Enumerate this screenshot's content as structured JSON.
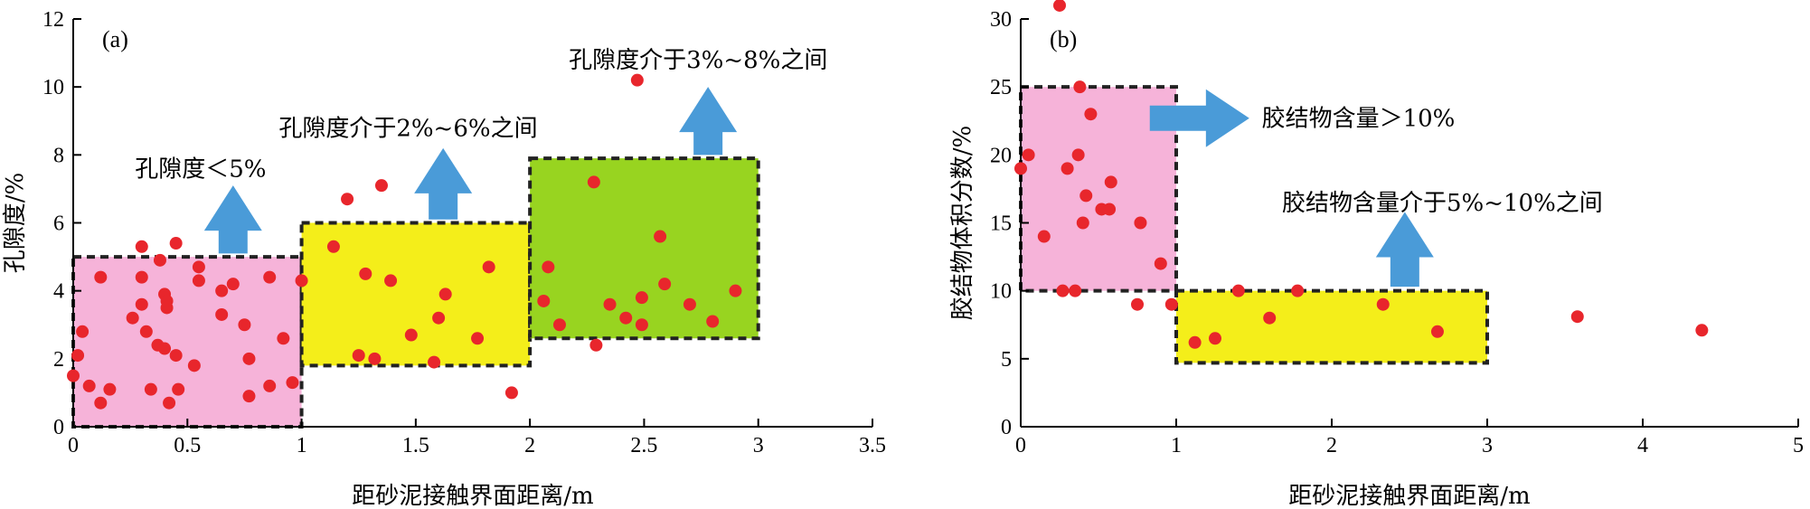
{
  "chart_data": [
    {
      "type": "scatter",
      "panel_label": "(a)",
      "xlabel": "距砂泥接触界面距离/m",
      "ylabel": "孔隙度/%",
      "xlim": [
        0,
        3.5
      ],
      "ylim": [
        0,
        12
      ],
      "xticks": [
        "0",
        "0.5",
        "1",
        "1.5",
        "2",
        "2.5",
        "3",
        "3.5"
      ],
      "yticks": [
        "0",
        "2",
        "4",
        "6",
        "8",
        "10",
        "12"
      ],
      "zones": [
        {
          "x0": 0,
          "x1": 1,
          "y0": 0,
          "y1": 5,
          "color": "#f6b3d9"
        },
        {
          "x0": 1,
          "x1": 2,
          "y0": 1.8,
          "y1": 6,
          "color": "#f4ee1a"
        },
        {
          "x0": 2,
          "x1": 3,
          "y0": 2.6,
          "y1": 7.9,
          "color": "#98d420"
        }
      ],
      "annotations": [
        {
          "text": "孔隙度＜5%",
          "x": 0.27,
          "y": 7.6,
          "arrow_x": 0.7,
          "arrow_y0": 5.1,
          "arrow_y1": 7.1
        },
        {
          "text": "孔隙度介于2%~6%之间",
          "x": 0.9,
          "y": 8.8,
          "arrow_x": 1.62,
          "arrow_y0": 6.1,
          "arrow_y1": 8.2
        },
        {
          "text": "孔隙度介于3%~8%之间",
          "x": 2.17,
          "y": 10.8,
          "arrow_x": 2.78,
          "arrow_y0": 8.0,
          "arrow_y1": 10.0
        }
      ],
      "points": [
        [
          0.0,
          1.5
        ],
        [
          0.02,
          2.1
        ],
        [
          0.04,
          2.8
        ],
        [
          0.07,
          1.2
        ],
        [
          0.12,
          4.4
        ],
        [
          0.12,
          0.7
        ],
        [
          0.16,
          1.1
        ],
        [
          0.26,
          3.2
        ],
        [
          0.3,
          5.3
        ],
        [
          0.3,
          4.4
        ],
        [
          0.3,
          3.6
        ],
        [
          0.32,
          2.8
        ],
        [
          0.34,
          1.1
        ],
        [
          0.37,
          2.4
        ],
        [
          0.38,
          4.9
        ],
        [
          0.4,
          3.9
        ],
        [
          0.4,
          2.3
        ],
        [
          0.41,
          3.5
        ],
        [
          0.41,
          3.7
        ],
        [
          0.42,
          0.7
        ],
        [
          0.45,
          2.1
        ],
        [
          0.45,
          5.4
        ],
        [
          0.46,
          1.1
        ],
        [
          0.53,
          1.8
        ],
        [
          0.55,
          4.7
        ],
        [
          0.55,
          4.3
        ],
        [
          0.65,
          4.0
        ],
        [
          0.65,
          3.3
        ],
        [
          0.7,
          4.2
        ],
        [
          0.75,
          3.0
        ],
        [
          0.77,
          2.0
        ],
        [
          0.77,
          0.9
        ],
        [
          0.86,
          4.4
        ],
        [
          0.86,
          1.2
        ],
        [
          0.92,
          2.6
        ],
        [
          0.96,
          1.3
        ],
        [
          1.0,
          4.3
        ],
        [
          1.14,
          5.3
        ],
        [
          1.2,
          6.7
        ],
        [
          1.25,
          2.1
        ],
        [
          1.28,
          4.5
        ],
        [
          1.32,
          2.0
        ],
        [
          1.35,
          7.1
        ],
        [
          1.39,
          4.3
        ],
        [
          1.48,
          2.7
        ],
        [
          1.58,
          1.9
        ],
        [
          1.6,
          3.2
        ],
        [
          1.63,
          3.9
        ],
        [
          1.77,
          2.6
        ],
        [
          1.82,
          4.7
        ],
        [
          1.92,
          1.0
        ],
        [
          2.06,
          3.7
        ],
        [
          2.08,
          4.7
        ],
        [
          2.13,
          3.0
        ],
        [
          2.28,
          7.2
        ],
        [
          2.29,
          2.4
        ],
        [
          2.35,
          3.6
        ],
        [
          2.42,
          3.2
        ],
        [
          2.47,
          10.2
        ],
        [
          2.49,
          3.0
        ],
        [
          2.49,
          3.8
        ],
        [
          2.57,
          5.6
        ],
        [
          2.59,
          4.2
        ],
        [
          2.7,
          3.6
        ],
        [
          2.8,
          3.1
        ],
        [
          2.9,
          4.0
        ]
      ]
    },
    {
      "type": "scatter",
      "panel_label": "(b)",
      "xlabel": "距砂泥接触界面距离/m",
      "ylabel": "胶结物体积分数/%",
      "xlim": [
        0,
        5
      ],
      "ylim": [
        0,
        30
      ],
      "xticks": [
        "0",
        "1",
        "2",
        "3",
        "4",
        "5"
      ],
      "yticks": [
        "0",
        "5",
        "10",
        "15",
        "20",
        "25",
        "30"
      ],
      "zones": [
        {
          "x0": 0,
          "x1": 1,
          "y0": 10,
          "y1": 25,
          "color": "#f6b3d9"
        },
        {
          "x0": 1,
          "x1": 3,
          "y0": 4.7,
          "y1": 10,
          "color": "#f4ee1a"
        }
      ],
      "annotations": [
        {
          "text": "胶结物含量＞10%",
          "x": 1.55,
          "y": 22.7,
          "arrow_dir": "right",
          "arrow_x0": 0.83,
          "arrow_x1": 1.47,
          "arrow_y": 22.7
        },
        {
          "text": "胶结物含量介于5%~10%之间",
          "x": 1.68,
          "y": 16.5,
          "arrow_x": 2.47,
          "arrow_y0": 10.3,
          "arrow_y1": 15.8
        }
      ],
      "points": [
        [
          0.0,
          19.0
        ],
        [
          0.05,
          20.0
        ],
        [
          0.15,
          14.0
        ],
        [
          0.25,
          31.0
        ],
        [
          0.27,
          10.0
        ],
        [
          0.3,
          19.0
        ],
        [
          0.35,
          10.0
        ],
        [
          0.37,
          20.0
        ],
        [
          0.38,
          25.0
        ],
        [
          0.4,
          15.0
        ],
        [
          0.42,
          17.0
        ],
        [
          0.45,
          23.0
        ],
        [
          0.52,
          16.0
        ],
        [
          0.57,
          16.0
        ],
        [
          0.58,
          18.0
        ],
        [
          0.75,
          9.0
        ],
        [
          0.77,
          15.0
        ],
        [
          0.9,
          12.0
        ],
        [
          0.97,
          9.0
        ],
        [
          1.12,
          6.2
        ],
        [
          1.25,
          6.5
        ],
        [
          1.4,
          10.0
        ],
        [
          1.6,
          8.0
        ],
        [
          1.78,
          10.0
        ],
        [
          2.33,
          9.0
        ],
        [
          2.68,
          7.0
        ],
        [
          3.58,
          8.1
        ],
        [
          4.38,
          7.1
        ]
      ]
    }
  ]
}
